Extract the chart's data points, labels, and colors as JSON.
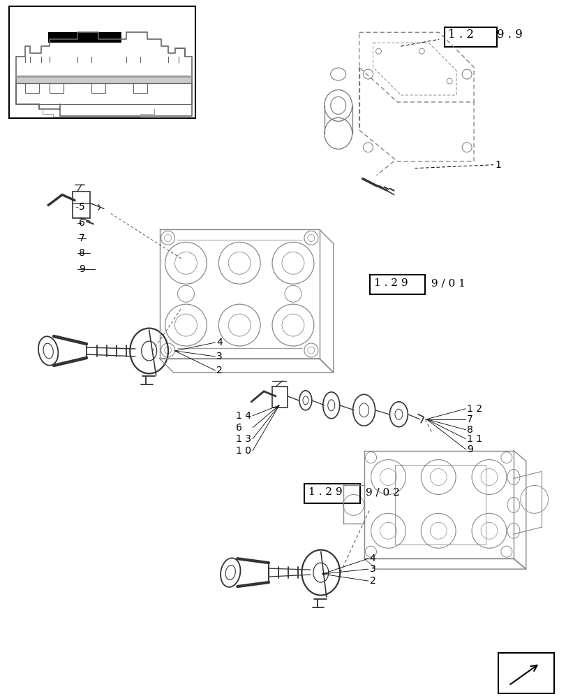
{
  "bg_color": "#ffffff",
  "fig_width": 8.12,
  "fig_height": 10.0,
  "dpi": 100,
  "gray": "#888888",
  "dark": "#333333",
  "light": "#bbbbbb",
  "label_box1_text": "1 . 2",
  "label_box1_suffix": "9 . 9",
  "label_box2_text": "1 . 2 9",
  "label_box2_suffix": " 9 / 0 1",
  "label_box3_text": "1 . 2 9",
  "label_box3_suffix": " 9 / 0 2"
}
